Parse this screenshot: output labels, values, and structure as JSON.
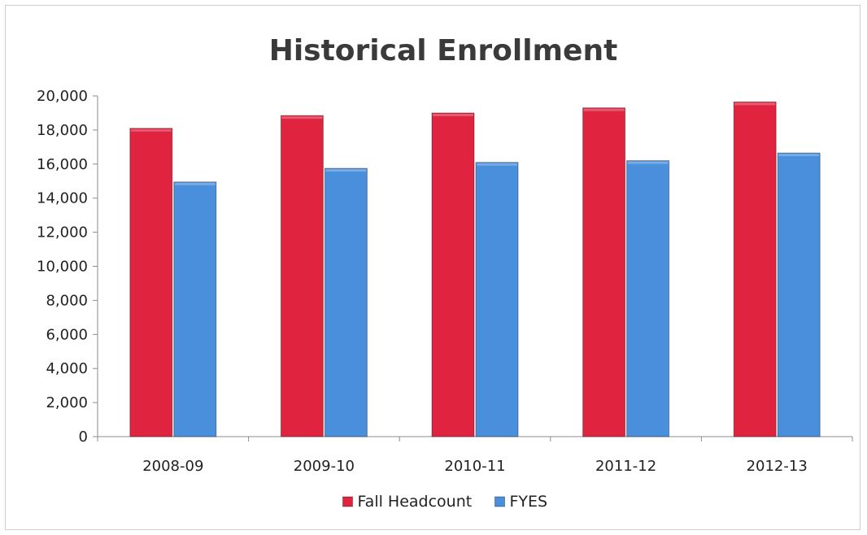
{
  "chart_data": {
    "type": "bar",
    "title": "Historical Enrollment",
    "categories": [
      "2008-09",
      "2009-10",
      "2010-11",
      "2011-12",
      "2012-13"
    ],
    "series": [
      {
        "name": "Fall Headcount",
        "color": "#e0233f",
        "values": [
          18100,
          18850,
          19000,
          19300,
          19650
        ]
      },
      {
        "name": "FYES",
        "color": "#4a8fdb",
        "values": [
          14950,
          15750,
          16100,
          16200,
          16650
        ]
      }
    ],
    "ylim": [
      0,
      20000
    ],
    "yticks": [
      0,
      2000,
      4000,
      6000,
      8000,
      10000,
      12000,
      14000,
      16000,
      18000,
      20000
    ],
    "ytick_labels": [
      "0",
      "2,000",
      "4,000",
      "6,000",
      "8,000",
      "10,000",
      "12,000",
      "14,000",
      "16,000",
      "18,000",
      "20,000"
    ],
    "grid": false,
    "legend_position": "bottom"
  }
}
